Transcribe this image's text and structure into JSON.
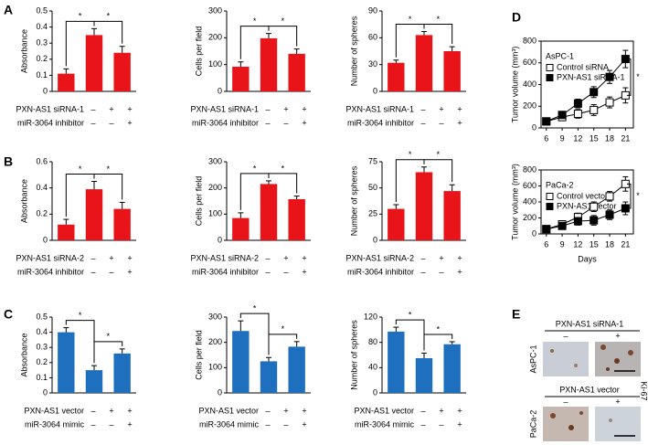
{
  "panel_labels": [
    "A",
    "B",
    "C",
    "D",
    "E"
  ],
  "chart_data": [
    {
      "type": "bar",
      "y_label": "Absorbance",
      "values": [
        0.11,
        0.35,
        0.24
      ],
      "errors": [
        0.03,
        0.04,
        0.04
      ],
      "color": "#e8141a",
      "ylim": [
        0,
        0.5
      ],
      "yticks": [
        0,
        0.1,
        0.2,
        0.3,
        0.4,
        0.5
      ],
      "annotations": [
        "*",
        "*"
      ],
      "conditions": [
        {
          "label": "PXN-AS1 siRNA-1",
          "signs": [
            "–",
            "+",
            "+"
          ]
        },
        {
          "label": "miR-3064 inhibitor",
          "signs": [
            "–",
            "–",
            "+"
          ]
        }
      ]
    },
    {
      "type": "bar",
      "y_label": "Cells per field",
      "values": [
        92,
        198,
        140
      ],
      "errors": [
        18,
        18,
        18
      ],
      "color": "#e8141a",
      "ylim": [
        0,
        300
      ],
      "yticks": [
        0,
        100,
        200,
        300
      ],
      "annotations": [
        "*",
        "*"
      ],
      "conditions": [
        {
          "label": "PXN-AS1 siRNA-1",
          "signs": [
            "–",
            "+",
            "+"
          ]
        },
        {
          "label": "miR-3064 inhibitor",
          "signs": [
            "–",
            "–",
            "+"
          ]
        }
      ]
    },
    {
      "type": "bar",
      "y_label": "Number of spheres",
      "values": [
        32,
        63,
        45
      ],
      "errors": [
        3,
        4,
        5
      ],
      "color": "#e8141a",
      "ylim": [
        0,
        90
      ],
      "yticks": [
        0,
        30,
        60,
        90
      ],
      "annotations": [
        "*",
        "*"
      ],
      "conditions": [
        {
          "label": "PXN-AS1 siRNA-1",
          "signs": [
            "–",
            "+",
            "+"
          ]
        },
        {
          "label": "miR-3064 inhibitor",
          "signs": [
            "–",
            "–",
            "+"
          ]
        }
      ]
    },
    {
      "type": "bar",
      "y_label": "Absorbance",
      "values": [
        0.12,
        0.39,
        0.24
      ],
      "errors": [
        0.04,
        0.06,
        0.05
      ],
      "color": "#e8141a",
      "ylim": [
        0,
        0.6
      ],
      "yticks": [
        0,
        0.2,
        0.4,
        0.6
      ],
      "annotations": [
        "*",
        "*"
      ],
      "conditions": [
        {
          "label": "PXN-AS1 siRNA-2",
          "signs": [
            "–",
            "+",
            "+"
          ]
        },
        {
          "label": "miR-3064 inhibitor",
          "signs": [
            "–",
            "–",
            "+"
          ]
        }
      ]
    },
    {
      "type": "bar",
      "y_label": "Cells per field",
      "values": [
        85,
        215,
        157
      ],
      "errors": [
        20,
        12,
        12
      ],
      "color": "#e8141a",
      "ylim": [
        0,
        300
      ],
      "yticks": [
        0,
        100,
        200,
        300
      ],
      "annotations": [
        "*",
        "*"
      ],
      "conditions": [
        {
          "label": "PXN-AS1 siRNA-2",
          "signs": [
            "–",
            "+",
            "+"
          ]
        },
        {
          "label": "miR-3064 inhibitor",
          "signs": [
            "–",
            "–",
            "+"
          ]
        }
      ]
    },
    {
      "type": "bar",
      "y_label": "Number of spheres",
      "values": [
        30,
        65,
        47
      ],
      "errors": [
        4,
        5,
        6
      ],
      "color": "#e8141a",
      "ylim": [
        0,
        75
      ],
      "yticks": [
        0,
        25,
        50,
        75
      ],
      "annotations": [
        "*",
        "*"
      ],
      "conditions": [
        {
          "label": "PXN-AS1 siRNA-2",
          "signs": [
            "–",
            "+",
            "+"
          ]
        },
        {
          "label": "miR-3064 inhibitor",
          "signs": [
            "–",
            "–",
            "+"
          ]
        }
      ]
    },
    {
      "type": "bar",
      "y_label": "Absorbance",
      "values": [
        0.4,
        0.15,
        0.26
      ],
      "errors": [
        0.03,
        0.03,
        0.03
      ],
      "color": "#1f6fbf",
      "ylim": [
        0,
        0.5
      ],
      "yticks": [
        0,
        0.1,
        0.2,
        0.3,
        0.4,
        0.5
      ],
      "annotations": [
        "*",
        "*"
      ],
      "conditions": [
        {
          "label": "PXN-AS1 vector",
          "signs": [
            "–",
            "+",
            "+"
          ]
        },
        {
          "label": "miR-3064 mimic",
          "signs": [
            "–",
            "–",
            "+"
          ]
        }
      ]
    },
    {
      "type": "bar",
      "y_label": "Cells per field",
      "values": [
        245,
        125,
        183
      ],
      "errors": [
        40,
        15,
        20
      ],
      "color": "#1f6fbf",
      "ylim": [
        0,
        300
      ],
      "yticks": [
        0,
        100,
        200,
        300
      ],
      "annotations": [
        "*",
        "*"
      ],
      "conditions": [
        {
          "label": "PXN-AS1 vector",
          "signs": [
            "–",
            "+",
            "+"
          ]
        },
        {
          "label": "miR-3064 mimic",
          "signs": [
            "–",
            "–",
            "+"
          ]
        }
      ]
    },
    {
      "type": "bar",
      "y_label": "Number of spheres",
      "values": [
        97,
        55,
        77
      ],
      "errors": [
        7,
        8,
        4
      ],
      "color": "#1f6fbf",
      "ylim": [
        0,
        120
      ],
      "yticks": [
        0,
        40,
        80,
        120
      ],
      "annotations": [
        "*",
        "*"
      ],
      "conditions": [
        {
          "label": "PXN-AS1 vector",
          "signs": [
            "–",
            "+",
            "+"
          ]
        },
        {
          "label": "miR-3064 mimic",
          "signs": [
            "–",
            "–",
            "+"
          ]
        }
      ]
    },
    {
      "type": "line",
      "legend_title": "AsPC-1",
      "y_label": "Tumor volume (mm³)",
      "x": [
        6,
        9,
        12,
        15,
        18,
        21
      ],
      "xlim": [
        5,
        22.5
      ],
      "xticks": [
        6,
        9,
        12,
        15,
        18,
        21
      ],
      "ylim": [
        0,
        800
      ],
      "yticks": [
        0,
        200,
        400,
        600,
        800
      ],
      "annotation": "*",
      "series": [
        {
          "name": "Control  siRNA",
          "color": "#ffffff",
          "values": [
            60,
            100,
            130,
            165,
            235,
            300
          ],
          "errors": [
            30,
            30,
            40,
            50,
            50,
            70
          ]
        },
        {
          "name": "PXN-AS1 siRNA-1",
          "color": "#000000",
          "values": [
            60,
            120,
            225,
            330,
            470,
            635
          ],
          "errors": [
            30,
            30,
            40,
            50,
            60,
            80
          ]
        }
      ]
    },
    {
      "type": "line",
      "legend_title": "PaCa-2",
      "y_label": "Tumor volume (mm³)",
      "x_label": "Days",
      "x": [
        6,
        9,
        12,
        15,
        18,
        21
      ],
      "xlim": [
        5,
        22.5
      ],
      "xticks": [
        6,
        9,
        12,
        15,
        18,
        21
      ],
      "ylim": [
        0,
        800
      ],
      "yticks": [
        0,
        200,
        400,
        600,
        800
      ],
      "annotation": "*",
      "series": [
        {
          "name": "Control vector",
          "color": "#ffffff",
          "values": [
            60,
            120,
            210,
            340,
            470,
            625
          ],
          "errors": [
            30,
            40,
            50,
            60,
            60,
            90
          ]
        },
        {
          "name": "PXN-AS1 vector",
          "color": "#000000",
          "values": [
            60,
            100,
            160,
            170,
            240,
            320
          ],
          "errors": [
            30,
            40,
            50,
            60,
            60,
            80
          ]
        }
      ]
    }
  ],
  "panel_e": {
    "top_title": "PXN-AS1 siRNA-1",
    "top_signs": [
      "–",
      "+"
    ],
    "top_row": "AsPC-1",
    "bottom_title": "PXN-AS1 vector",
    "bottom_signs": [
      "–",
      "+"
    ],
    "bottom_row": "PaCa-2",
    "side_label": "Ki-67"
  }
}
